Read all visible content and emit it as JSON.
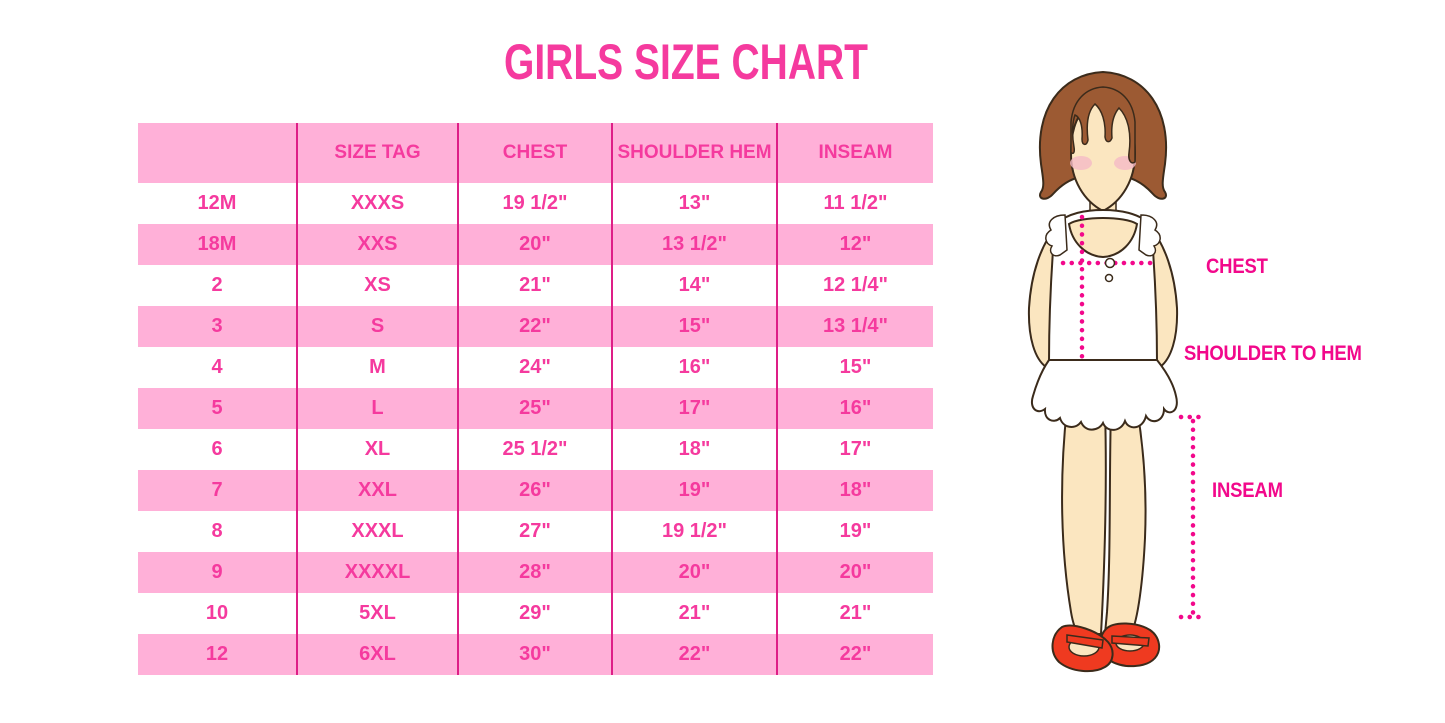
{
  "title": "GIRLS SIZE CHART",
  "chart_data": {
    "type": "table",
    "title": "GIRLS SIZE CHART",
    "columns": [
      "",
      "SIZE TAG",
      "CHEST",
      "SHOULDER HEM",
      "INSEAM"
    ],
    "rows": [
      [
        "12M",
        "XXXS",
        "19 1/2\"",
        "13\"",
        "11 1/2\""
      ],
      [
        "18M",
        "XXS",
        "20\"",
        "13 1/2\"",
        "12\""
      ],
      [
        "2",
        "XS",
        "21\"",
        "14\"",
        "12 1/4\""
      ],
      [
        "3",
        "S",
        "22\"",
        "15\"",
        "13 1/4\""
      ],
      [
        "4",
        "M",
        "24\"",
        "16\"",
        "15\""
      ],
      [
        "5",
        "L",
        "25\"",
        "17\"",
        "16\""
      ],
      [
        "6",
        "XL",
        "25 1/2\"",
        "18\"",
        "17\""
      ],
      [
        "7",
        "XXL",
        "26\"",
        "19\"",
        "18\""
      ],
      [
        "8",
        "XXXL",
        "27\"",
        "19 1/2\"",
        "19\""
      ],
      [
        "9",
        "XXXXL",
        "28\"",
        "20\"",
        "20\""
      ],
      [
        "10",
        "5XL",
        "29\"",
        "21\"",
        "21\""
      ],
      [
        "12",
        "6XL",
        "30\"",
        "22\"",
        "22\""
      ]
    ],
    "layout_hints": {
      "row_striping": "header pink, then alternating white/pink starting white",
      "column_dividers": "vertical magenta lines only, no horizontal borders"
    }
  },
  "figure": {
    "labels": {
      "chest": "CHEST",
      "shoulder_to_hem": "SHOULDER TO HEM",
      "inseam": "INSEAM"
    }
  },
  "colors": {
    "title_text": "#F53A9E",
    "table_text": "#F53A9E",
    "row_pink": "#FFB0D8",
    "divider_pink": "#DE1E87",
    "label_magenta": "#F2088B",
    "dotted_line": "#F2088B",
    "hair_brown": "#9C5A33",
    "skin": "#FBE6C0",
    "blush": "#F5BAC6",
    "shoe_red": "#EF3A20",
    "outline": "#3B2B1B",
    "background": "#FFFFFF"
  }
}
